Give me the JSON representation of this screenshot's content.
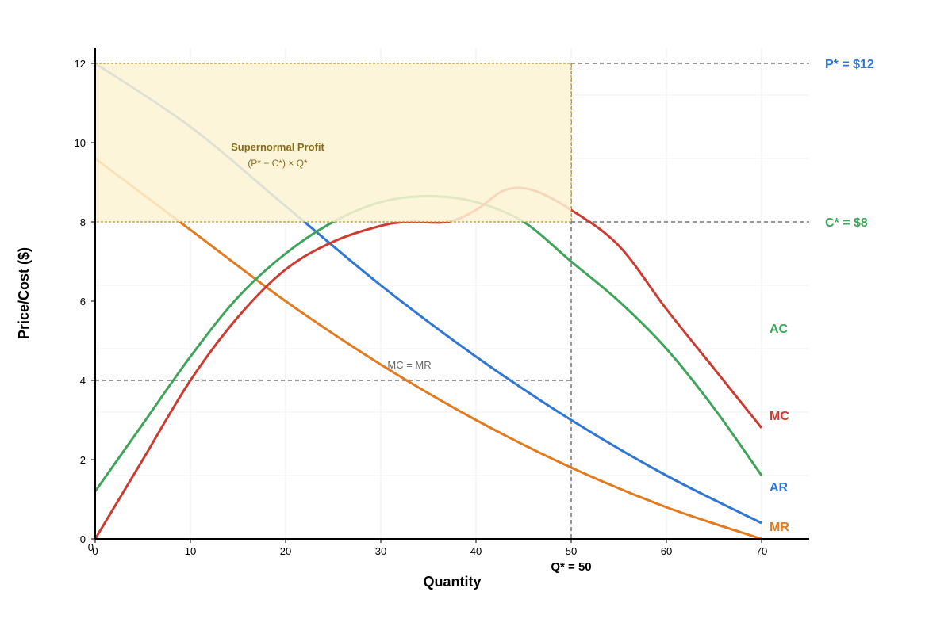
{
  "chart_data": {
    "type": "line",
    "xlabel": "Quantity",
    "ylabel": "Price/Cost ($)",
    "xlim": [
      0,
      75
    ],
    "ylim": [
      0,
      12.4
    ],
    "x_ticks": [
      0,
      10,
      20,
      30,
      40,
      50,
      60,
      70
    ],
    "y_ticks": [
      0,
      2,
      4,
      6,
      8,
      10,
      12
    ],
    "origin_label": "0",
    "grid": true,
    "series": [
      {
        "name": "AR",
        "color": "#2f77d0",
        "points": [
          [
            0,
            12
          ],
          [
            10,
            10.4
          ],
          [
            20,
            8.4
          ],
          [
            30,
            6.4
          ],
          [
            40,
            4.6
          ],
          [
            50,
            3.0
          ],
          [
            60,
            1.6
          ],
          [
            70,
            0.4
          ]
        ]
      },
      {
        "name": "MR",
        "color": "#e07b20",
        "points": [
          [
            0,
            9.6
          ],
          [
            10,
            7.8
          ],
          [
            20,
            6.0
          ],
          [
            30,
            4.4
          ],
          [
            40,
            3.0
          ],
          [
            50,
            1.8
          ],
          [
            60,
            0.8
          ],
          [
            70,
            0.0
          ]
        ]
      },
      {
        "name": "AC",
        "color": "#3fa45a",
        "points": [
          [
            0,
            1.2
          ],
          [
            5,
            2.9
          ],
          [
            10,
            4.6
          ],
          [
            15,
            6.1
          ],
          [
            20,
            7.2
          ],
          [
            25,
            8.0
          ],
          [
            30,
            8.5
          ],
          [
            35,
            8.65
          ],
          [
            40,
            8.5
          ],
          [
            45,
            8.0
          ],
          [
            50,
            7.0
          ],
          [
            55,
            6.0
          ],
          [
            60,
            4.8
          ],
          [
            65,
            3.3
          ],
          [
            70,
            1.6
          ]
        ]
      },
      {
        "name": "MC",
        "color": "#cc3b32",
        "points": [
          [
            0,
            0.0
          ],
          [
            5,
            2.0
          ],
          [
            10,
            4.0
          ],
          [
            15,
            5.6
          ],
          [
            20,
            6.8
          ],
          [
            25,
            7.5
          ],
          [
            30,
            7.9
          ],
          [
            33,
            8.0
          ],
          [
            37,
            8.0
          ],
          [
            40,
            8.3
          ],
          [
            43,
            8.8
          ],
          [
            46,
            8.8
          ],
          [
            50,
            8.3
          ],
          [
            55,
            7.4
          ],
          [
            60,
            5.8
          ],
          [
            65,
            4.3
          ],
          [
            70,
            2.8
          ]
        ]
      }
    ],
    "reference_lines": [
      {
        "label": "P* = $12",
        "y": 12,
        "color": "#2f77d0"
      },
      {
        "label": "C* = $8",
        "y": 8,
        "color": "#3fa45a"
      }
    ],
    "mc_mr_line": {
      "y": 4,
      "x_end": 50,
      "label": "MC = MR",
      "label_x": 33
    },
    "q_star": {
      "x": 50,
      "label": "Q* = 50"
    },
    "profit_region": {
      "x0": 0,
      "x1": 50,
      "y0": 8,
      "y1": 12,
      "fill": "#fdf3d3",
      "border": "#b8962e",
      "title": "Supernormal Profit",
      "subtitle": "(P* − C*) × Q*",
      "text_color": "#8a6d1a"
    }
  }
}
